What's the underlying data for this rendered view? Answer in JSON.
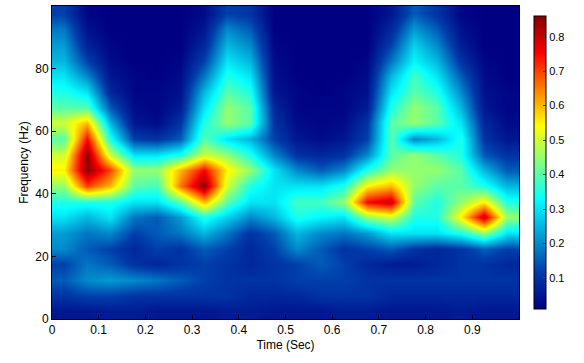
{
  "chart_data": {
    "type": "heatmap",
    "x_label": "Time (Sec)",
    "y_label": "Frequency (Hz)",
    "xlim": [
      0,
      1
    ],
    "xticks": [
      0,
      0.1,
      0.2,
      0.3,
      0.4,
      0.5,
      0.6,
      0.7,
      0.8,
      0.9
    ],
    "ylim": [
      0,
      100
    ],
    "yticks": [
      0,
      20,
      40,
      60,
      80
    ],
    "colorbar_range": [
      0.01,
      0.86
    ],
    "colorbar_ticks": [
      0.1,
      0.2,
      0.3,
      0.4,
      0.5,
      0.6,
      0.7,
      0.8
    ],
    "x": [
      0.025,
      0.075,
      0.125,
      0.175,
      0.225,
      0.275,
      0.325,
      0.375,
      0.425,
      0.475,
      0.525,
      0.575,
      0.625,
      0.675,
      0.725,
      0.775,
      0.825,
      0.875,
      0.925,
      0.975
    ],
    "y": [
      2.5,
      7.5,
      12.5,
      17.5,
      22.5,
      27.5,
      32.5,
      37.5,
      42.5,
      47.5,
      52.5,
      57.5,
      62.5,
      67.5,
      72.5,
      77.5,
      82.5,
      87.5,
      92.5,
      97.5
    ],
    "z": [
      [
        0.05,
        0.05,
        0.06,
        0.06,
        0.05,
        0.05,
        0.05,
        0.06,
        0.06,
        0.05,
        0.05,
        0.05,
        0.06,
        0.06,
        0.05,
        0.05,
        0.05,
        0.06,
        0.05,
        0.05
      ],
      [
        0.1,
        0.12,
        0.12,
        0.1,
        0.1,
        0.1,
        0.1,
        0.1,
        0.08,
        0.08,
        0.08,
        0.1,
        0.1,
        0.1,
        0.08,
        0.08,
        0.08,
        0.08,
        0.08,
        0.08
      ],
      [
        0.15,
        0.2,
        0.22,
        0.2,
        0.18,
        0.15,
        0.12,
        0.1,
        0.1,
        0.1,
        0.12,
        0.12,
        0.12,
        0.1,
        0.1,
        0.1,
        0.1,
        0.1,
        0.1,
        0.1
      ],
      [
        0.12,
        0.18,
        0.15,
        0.1,
        0.08,
        0.1,
        0.12,
        0.1,
        0.08,
        0.1,
        0.12,
        0.15,
        0.12,
        0.08,
        0.06,
        0.06,
        0.08,
        0.1,
        0.1,
        0.08
      ],
      [
        0.2,
        0.15,
        0.12,
        0.08,
        0.12,
        0.1,
        0.15,
        0.12,
        0.08,
        0.12,
        0.2,
        0.15,
        0.1,
        0.12,
        0.15,
        0.1,
        0.08,
        0.1,
        0.15,
        0.12
      ],
      [
        0.22,
        0.18,
        0.2,
        0.12,
        0.15,
        0.18,
        0.25,
        0.18,
        0.1,
        0.15,
        0.25,
        0.2,
        0.18,
        0.22,
        0.3,
        0.3,
        0.3,
        0.35,
        0.45,
        0.3
      ],
      [
        0.3,
        0.25,
        0.3,
        0.18,
        0.15,
        0.22,
        0.35,
        0.28,
        0.2,
        0.25,
        0.35,
        0.32,
        0.3,
        0.45,
        0.5,
        0.35,
        0.35,
        0.55,
        0.8,
        0.45
      ],
      [
        0.35,
        0.35,
        0.35,
        0.3,
        0.3,
        0.4,
        0.6,
        0.4,
        0.3,
        0.3,
        0.38,
        0.38,
        0.45,
        0.75,
        0.8,
        0.4,
        0.35,
        0.45,
        0.55,
        0.35
      ],
      [
        0.45,
        0.7,
        0.6,
        0.4,
        0.38,
        0.65,
        0.85,
        0.5,
        0.35,
        0.3,
        0.3,
        0.3,
        0.35,
        0.55,
        0.6,
        0.45,
        0.4,
        0.4,
        0.35,
        0.25
      ],
      [
        0.55,
        0.85,
        0.7,
        0.45,
        0.45,
        0.6,
        0.75,
        0.55,
        0.45,
        0.3,
        0.2,
        0.15,
        0.2,
        0.35,
        0.45,
        0.45,
        0.45,
        0.4,
        0.25,
        0.15
      ],
      [
        0.5,
        0.85,
        0.5,
        0.3,
        0.3,
        0.35,
        0.5,
        0.45,
        0.35,
        0.2,
        0.1,
        0.08,
        0.1,
        0.2,
        0.4,
        0.45,
        0.4,
        0.35,
        0.15,
        0.1
      ],
      [
        0.4,
        0.75,
        0.35,
        0.12,
        0.1,
        0.15,
        0.4,
        0.3,
        0.25,
        0.12,
        0.05,
        0.03,
        0.05,
        0.12,
        0.4,
        0.2,
        0.25,
        0.35,
        0.1,
        0.05
      ],
      [
        0.5,
        0.6,
        0.25,
        0.05,
        0.03,
        0.1,
        0.35,
        0.45,
        0.4,
        0.1,
        0.03,
        0.02,
        0.03,
        0.1,
        0.4,
        0.45,
        0.4,
        0.3,
        0.08,
        0.03
      ],
      [
        0.4,
        0.4,
        0.15,
        0.03,
        0.02,
        0.06,
        0.3,
        0.45,
        0.4,
        0.08,
        0.02,
        0.02,
        0.02,
        0.06,
        0.35,
        0.45,
        0.4,
        0.25,
        0.05,
        0.02
      ],
      [
        0.35,
        0.3,
        0.08,
        0.02,
        0.02,
        0.04,
        0.25,
        0.4,
        0.35,
        0.05,
        0.02,
        0.01,
        0.02,
        0.04,
        0.3,
        0.4,
        0.35,
        0.2,
        0.04,
        0.02
      ],
      [
        0.3,
        0.2,
        0.05,
        0.02,
        0.01,
        0.03,
        0.18,
        0.35,
        0.3,
        0.04,
        0.01,
        0.01,
        0.01,
        0.03,
        0.25,
        0.38,
        0.3,
        0.15,
        0.03,
        0.01
      ],
      [
        0.25,
        0.12,
        0.03,
        0.01,
        0.01,
        0.02,
        0.12,
        0.3,
        0.25,
        0.03,
        0.01,
        0.01,
        0.01,
        0.02,
        0.18,
        0.32,
        0.25,
        0.1,
        0.02,
        0.01
      ],
      [
        0.22,
        0.07,
        0.02,
        0.01,
        0.01,
        0.01,
        0.08,
        0.25,
        0.2,
        0.02,
        0.01,
        0.01,
        0.01,
        0.01,
        0.12,
        0.28,
        0.2,
        0.06,
        0.01,
        0.01
      ],
      [
        0.18,
        0.04,
        0.01,
        0.01,
        0.01,
        0.01,
        0.05,
        0.2,
        0.15,
        0.01,
        0.01,
        0.01,
        0.01,
        0.01,
        0.08,
        0.22,
        0.15,
        0.04,
        0.01,
        0.01
      ],
      [
        0.12,
        0.02,
        0.01,
        0.01,
        0.01,
        0.01,
        0.03,
        0.12,
        0.1,
        0.01,
        0.01,
        0.01,
        0.01,
        0.01,
        0.05,
        0.15,
        0.1,
        0.02,
        0.01,
        0.01
      ]
    ]
  }
}
